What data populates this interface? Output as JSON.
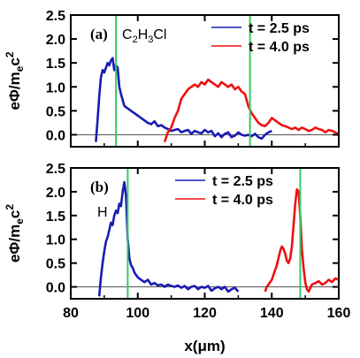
{
  "chart_data": [
    {
      "type": "line",
      "panel_label": "(a)",
      "species_label": {
        "base": "C",
        "parts": [
          [
            "C",
            ""
          ],
          [
            "2",
            "sub"
          ],
          [
            "H",
            ""
          ],
          [
            "3",
            "sub"
          ],
          [
            "Cl",
            ""
          ]
        ]
      },
      "xlabel": "x(μm)",
      "ylabel": "eΦ/mec2",
      "xlim": [
        80,
        160
      ],
      "ylim": [
        -0.25,
        2.5
      ],
      "xticks": [
        80,
        100,
        120,
        140,
        160
      ],
      "yticks": [
        0.0,
        0.5,
        1.0,
        1.5,
        2.0,
        2.5
      ],
      "ytick_labels": [
        "0.0",
        "0.5",
        "1.0",
        "1.5",
        "2.0",
        "2.5"
      ],
      "legend_position": "top-right",
      "zero_line": 0,
      "vlines": [
        93.5,
        133.5
      ],
      "colors": {
        "blue": "#1a1ab5",
        "red": "#ee1010",
        "green": "#33cc66"
      },
      "series": [
        {
          "name": "t = 2.5 ps",
          "color": "#1a1ab5",
          "x": [
            87.5,
            88,
            88.5,
            89,
            89.5,
            90,
            90.5,
            91,
            91.5,
            92,
            92.5,
            93,
            93.5,
            94,
            94.5,
            95,
            96,
            97,
            98,
            99,
            100,
            101,
            102,
            103,
            104,
            105,
            106,
            107,
            108,
            109,
            110,
            111,
            112,
            113,
            114,
            115,
            116,
            117,
            118,
            119,
            120,
            121,
            122,
            123,
            124,
            125,
            126,
            127,
            128,
            129,
            130,
            131,
            132,
            133,
            134,
            135,
            136,
            137,
            138,
            139,
            140
          ],
          "y": [
            -0.15,
            0.3,
            0.8,
            1.2,
            1.35,
            1.3,
            1.4,
            1.5,
            1.45,
            1.55,
            1.6,
            1.35,
            1.45,
            1.4,
            1.0,
            0.85,
            0.6,
            0.55,
            0.5,
            0.45,
            0.4,
            0.35,
            0.3,
            0.25,
            0.22,
            0.28,
            0.18,
            0.2,
            0.15,
            0.12,
            0.08,
            0.1,
            0.12,
            0.05,
            0.08,
            0.1,
            0.02,
            0.08,
            0.05,
            0.03,
            0.1,
            0.05,
            0.08,
            -0.03,
            0.03,
            -0.05,
            0.02,
            0.05,
            -0.05,
            -0.02,
            0.05,
            0.0,
            -0.02,
            0.0,
            -0.03,
            0.02,
            -0.05,
            -0.08,
            0.0,
            0.05,
            0.08
          ]
        },
        {
          "name": "t = 4.0 ps",
          "color": "#ee1010",
          "x": [
            108,
            109,
            110,
            111,
            112,
            113,
            114,
            115,
            116,
            117,
            118,
            119,
            120,
            121,
            122,
            123,
            124,
            125,
            126,
            127,
            128,
            129,
            130,
            131,
            132,
            133,
            134,
            135,
            136,
            137,
            138,
            139,
            140,
            141,
            142,
            143,
            144,
            145,
            146,
            147,
            148,
            149,
            150,
            151,
            152,
            153,
            154,
            155,
            156,
            157,
            158,
            159,
            160
          ],
          "y": [
            -0.15,
            0.05,
            0.15,
            0.35,
            0.5,
            0.75,
            0.85,
            0.95,
            1.0,
            1.05,
            1.0,
            1.1,
            1.05,
            1.15,
            1.1,
            1.05,
            1.0,
            1.1,
            1.05,
            1.0,
            1.05,
            0.95,
            1.0,
            0.9,
            0.85,
            0.6,
            0.45,
            0.35,
            0.25,
            0.2,
            0.18,
            0.25,
            0.35,
            0.3,
            0.25,
            0.2,
            0.18,
            0.15,
            0.12,
            0.15,
            0.1,
            0.15,
            0.12,
            0.08,
            0.1,
            0.15,
            0.12,
            0.1,
            0.05,
            0.1,
            0.08,
            0.05,
            0.0
          ]
        }
      ]
    },
    {
      "type": "line",
      "panel_label": "(b)",
      "species_label": {
        "parts": [
          [
            "H",
            ""
          ]
        ]
      },
      "xlabel": "x(μm)",
      "ylabel": "eΦ/mec2",
      "xlim": [
        80,
        160
      ],
      "ylim": [
        -0.25,
        2.5
      ],
      "xticks": [
        80,
        100,
        120,
        140,
        160
      ],
      "xtick_labels": [
        "80",
        "100",
        "120",
        "140",
        "160"
      ],
      "yticks": [
        0.0,
        0.5,
        1.0,
        1.5,
        2.0,
        2.5
      ],
      "ytick_labels": [
        "0.0",
        "0.5",
        "1.0",
        "1.5",
        "2.0",
        "2.5"
      ],
      "legend_position": "top-right",
      "zero_line": 0,
      "vlines": [
        97,
        148.5
      ],
      "colors": {
        "blue": "#1a1ab5",
        "red": "#ee1010",
        "green": "#33cc66"
      },
      "series": [
        {
          "name": "t = 2.5 ps",
          "color": "#1a1ab5",
          "x": [
            88.5,
            89,
            89.5,
            90,
            90.5,
            91,
            91.5,
            92,
            92.5,
            93,
            93.5,
            94,
            94.5,
            95,
            95.5,
            96,
            96.5,
            97,
            97.5,
            98,
            98.5,
            99,
            99.5,
            100,
            101,
            102,
            103,
            104,
            105,
            106,
            107,
            108,
            109,
            110,
            111,
            112,
            113,
            114,
            115,
            116,
            117,
            118,
            119,
            120,
            121,
            122,
            123,
            124,
            125,
            126,
            127,
            128,
            129,
            130
          ],
          "y": [
            -0.2,
            0.2,
            0.5,
            0.75,
            0.95,
            1.05,
            1.2,
            1.35,
            1.3,
            1.5,
            1.6,
            1.55,
            1.75,
            1.7,
            2.0,
            2.2,
            1.9,
            1.0,
            0.6,
            0.45,
            0.4,
            0.3,
            0.25,
            0.2,
            0.15,
            0.1,
            0.15,
            0.05,
            0.08,
            0.03,
            0.05,
            0.0,
            0.05,
            0.02,
            0.0,
            0.03,
            -0.02,
            0.02,
            -0.05,
            0.0,
            0.02,
            -0.05,
            0.0,
            -0.02,
            0.02,
            -0.08,
            -0.03,
            0.0,
            -0.05,
            0.0,
            -0.1,
            -0.05,
            -0.02,
            -0.1
          ]
        },
        {
          "name": "t = 4.0 ps",
          "color": "#ee1010",
          "x": [
            138,
            138.5,
            139,
            139.5,
            140,
            140.5,
            141,
            141.5,
            142,
            142.5,
            143,
            143.5,
            144,
            144.5,
            145,
            145.5,
            146,
            146.5,
            147,
            147.5,
            148,
            148.5,
            149,
            149.5,
            150,
            150.5,
            151,
            152,
            153,
            154,
            155,
            156,
            157,
            158,
            159,
            160
          ],
          "y": [
            -0.1,
            0.0,
            0.05,
            0.1,
            0.15,
            0.25,
            0.35,
            0.45,
            0.6,
            0.75,
            0.85,
            0.8,
            0.7,
            0.55,
            0.5,
            0.6,
            0.85,
            1.3,
            1.75,
            2.05,
            2.0,
            1.5,
            0.8,
            0.4,
            0.1,
            -0.05,
            -0.1,
            0.05,
            0.08,
            0.12,
            0.05,
            0.08,
            0.15,
            0.1,
            0.18,
            0.15
          ]
        }
      ]
    }
  ]
}
